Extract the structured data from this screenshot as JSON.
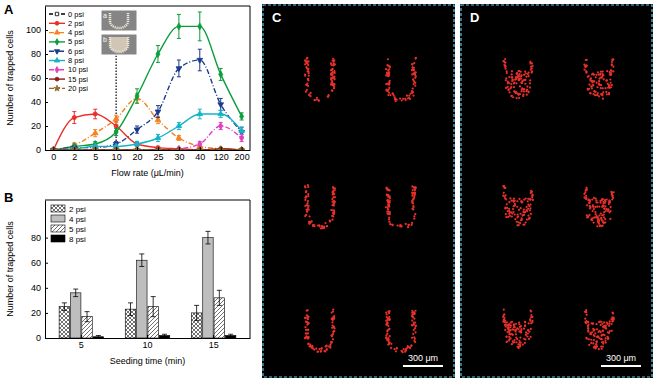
{
  "chart_data": [
    {
      "type": "line",
      "panel_label": "A",
      "x_label": "Flow rate (μL/min)",
      "y_label": "Number of trapped cells",
      "categories": [
        "0",
        "2",
        "5",
        "10",
        "20",
        "25",
        "30",
        "40",
        "120",
        "200"
      ],
      "ylim": [
        0,
        120
      ],
      "yticks": [
        0,
        20,
        40,
        60,
        80,
        100
      ],
      "legend": "upper left",
      "reference_line": "10",
      "insets": [
        "a",
        "b"
      ],
      "series": [
        {
          "name": "0 psi",
          "color": "#000000",
          "line_style": "dashed",
          "marker": "square",
          "values": [
            0,
            0,
            0,
            0,
            0,
            0,
            0,
            0,
            0,
            0
          ]
        },
        {
          "name": "2 psi",
          "color": "#e8302a",
          "line_style": "solid",
          "marker": "circle",
          "values": [
            0,
            27,
            30,
            20,
            5,
            2,
            1,
            0,
            0,
            0
          ],
          "errors": [
            0,
            5,
            4,
            4,
            2,
            0,
            0,
            0,
            0,
            0
          ]
        },
        {
          "name": "4 psi",
          "color": "#f5821f",
          "line_style": "dash-dot",
          "marker": "triangle",
          "values": [
            0,
            4,
            14,
            26,
            43,
            25,
            10,
            3,
            1,
            0
          ],
          "errors": [
            0,
            2,
            3,
            3,
            4,
            3,
            2,
            1,
            0,
            0
          ]
        },
        {
          "name": "5 psi",
          "color": "#0a9e3c",
          "line_style": "solid",
          "marker": "diamond",
          "values": [
            0,
            3,
            5,
            15,
            45,
            80,
            103,
            103,
            63,
            28
          ],
          "errors": [
            0,
            2,
            2,
            3,
            6,
            7,
            10,
            12,
            5,
            3
          ]
        },
        {
          "name": "6 psi",
          "color": "#1a3a8c",
          "line_style": "dash-dot",
          "marker": "triangle-down",
          "values": [
            0,
            2,
            2,
            5,
            17,
            32,
            68,
            75,
            38,
            15
          ],
          "errors": [
            0,
            1,
            1,
            2,
            3,
            5,
            7,
            9,
            5,
            4
          ]
        },
        {
          "name": "8 psi",
          "color": "#16b3c8",
          "line_style": "solid",
          "marker": "triangle",
          "values": [
            0,
            1,
            3,
            3,
            5,
            10,
            20,
            30,
            30,
            16
          ],
          "errors": [
            0,
            1,
            1,
            1,
            2,
            3,
            3,
            4,
            3,
            3
          ]
        },
        {
          "name": "10 psi",
          "color": "#e040c0",
          "line_style": "dash-dot",
          "marker": "diamond",
          "values": [
            0,
            0,
            0,
            0,
            0,
            0,
            1,
            5,
            20,
            10
          ],
          "errors": [
            0,
            0,
            0,
            0,
            0,
            0,
            1,
            2,
            3,
            3
          ]
        },
        {
          "name": "15 psi",
          "color": "#8b1a1a",
          "line_style": "solid",
          "marker": "circle",
          "values": [
            0,
            0,
            0,
            0,
            0,
            0,
            0,
            0,
            1,
            0
          ]
        },
        {
          "name": "20 psi",
          "color": "#8b6a2a",
          "line_style": "dash-dot-dot",
          "marker": "star",
          "values": [
            0,
            0,
            0,
            0,
            0,
            0,
            0,
            0,
            0,
            0
          ]
        }
      ]
    },
    {
      "type": "bar",
      "panel_label": "B",
      "x_label": "Seeding time (min)",
      "y_label": "Number of trapped cells",
      "categories": [
        "5",
        "10",
        "15"
      ],
      "ylim": [
        0,
        110
      ],
      "yticks": [
        0,
        20,
        40,
        60,
        80
      ],
      "legend": "upper left",
      "series": [
        {
          "name": "2 psi",
          "color": "#ffffff",
          "marker": "crosshatch",
          "values": [
            25,
            23,
            20
          ],
          "errors": [
            3,
            5,
            6
          ]
        },
        {
          "name": "4 psi",
          "color": "#bebebe",
          "marker": "none",
          "values": [
            36,
            62,
            80
          ],
          "errors": [
            3,
            5,
            5
          ]
        },
        {
          "name": "5 psi",
          "color": "#ffffff",
          "marker": "hatch",
          "values": [
            17,
            25,
            32
          ],
          "errors": [
            4,
            8,
            6
          ]
        },
        {
          "name": "8 psi",
          "color": "#000000",
          "marker": "none",
          "values": [
            1,
            2,
            2
          ],
          "errors": [
            1,
            1,
            1
          ]
        }
      ]
    },
    {
      "type": "image",
      "panel_label": "C",
      "scale_bar": "300 μm",
      "color": "#e8312b",
      "marker": "outline"
    },
    {
      "type": "image",
      "panel_label": "D",
      "scale_bar": "300 μm",
      "color": "#e8312b",
      "marker": "filled"
    }
  ]
}
